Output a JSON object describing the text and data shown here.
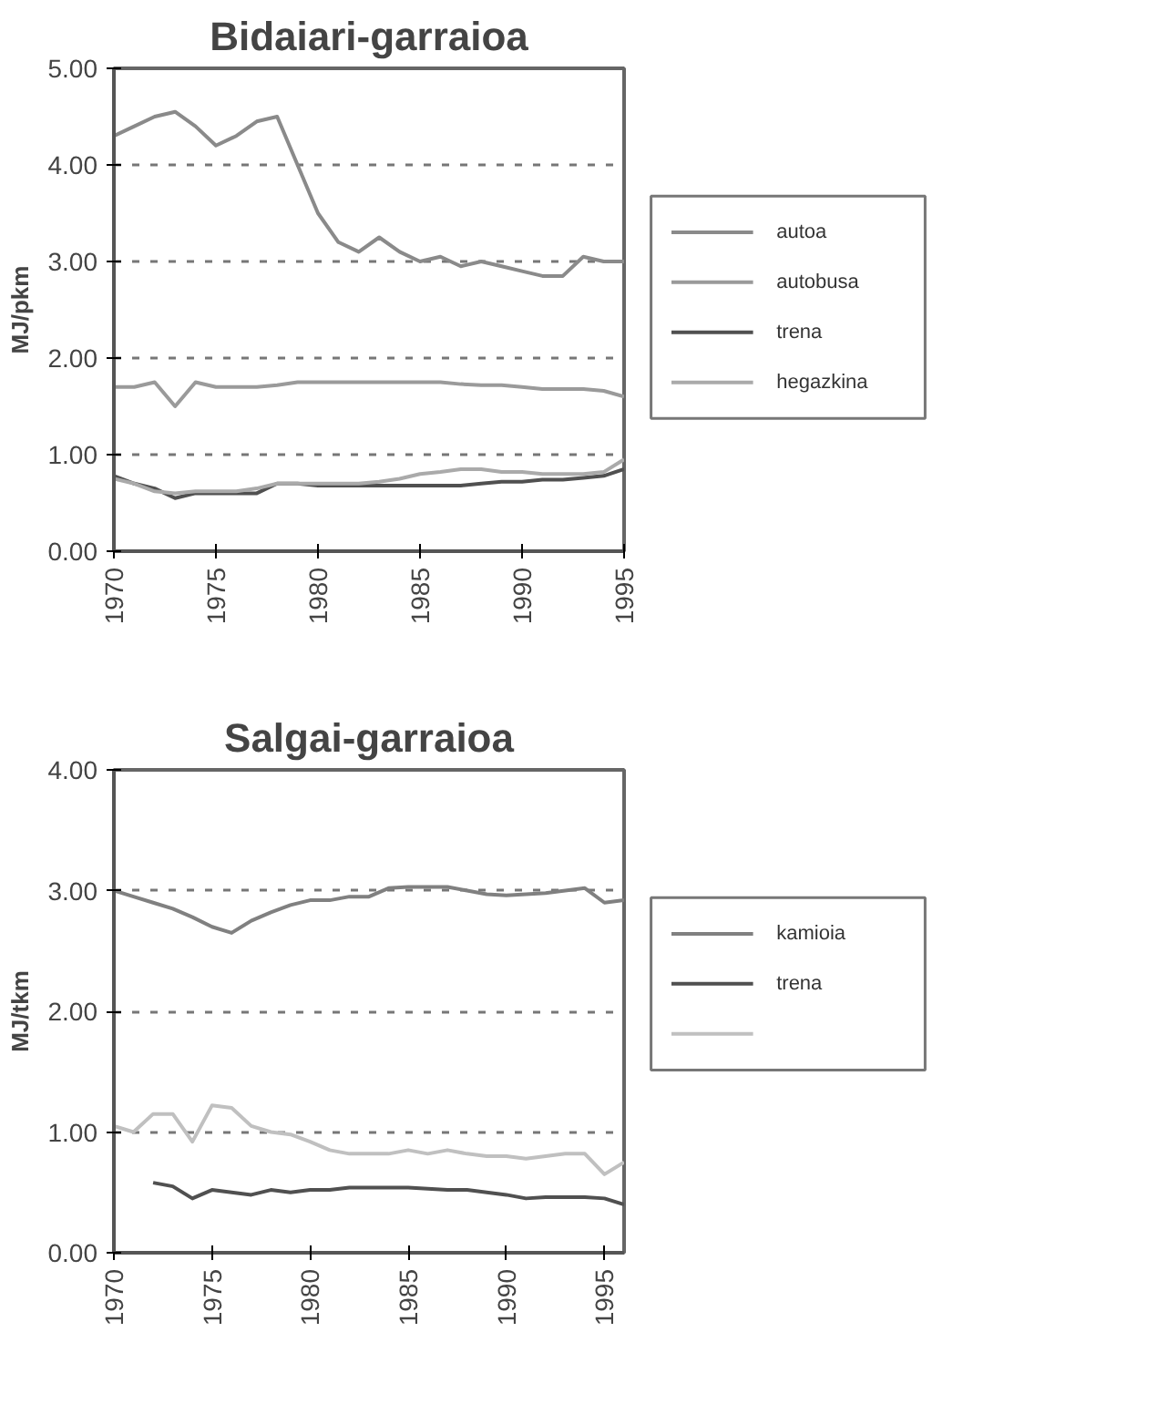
{
  "chart_data": [
    {
      "type": "line",
      "title": "Bidaiari-garraioa",
      "ylabel": "MJ/pkm",
      "x": [
        1970,
        1971,
        1972,
        1973,
        1974,
        1975,
        1976,
        1977,
        1978,
        1979,
        1980,
        1981,
        1982,
        1983,
        1984,
        1985,
        1986,
        1987,
        1988,
        1989,
        1990,
        1991,
        1992,
        1993,
        1994,
        1995
      ],
      "series": [
        {
          "name": "autoa",
          "color": "#8a8a8a",
          "values": [
            4.3,
            4.4,
            4.5,
            4.55,
            4.4,
            4.2,
            4.3,
            4.45,
            4.5,
            4.0,
            3.5,
            3.2,
            3.1,
            3.25,
            3.1,
            3.0,
            3.05,
            2.95,
            3.0,
            2.95,
            2.9,
            2.85,
            2.85,
            3.05,
            3.0,
            3.0
          ]
        },
        {
          "name": "autobusa",
          "color": "#9a9a9a",
          "values": [
            1.7,
            1.7,
            1.75,
            1.5,
            1.75,
            1.7,
            1.7,
            1.7,
            1.72,
            1.75,
            1.75,
            1.75,
            1.75,
            1.75,
            1.75,
            1.75,
            1.75,
            1.73,
            1.72,
            1.72,
            1.7,
            1.68,
            1.68,
            1.68,
            1.66,
            1.6
          ]
        },
        {
          "name": "trena",
          "color": "#505050",
          "values": [
            0.78,
            0.7,
            0.65,
            0.55,
            0.6,
            0.6,
            0.6,
            0.6,
            0.7,
            0.7,
            0.68,
            0.68,
            0.68,
            0.68,
            0.68,
            0.68,
            0.68,
            0.68,
            0.7,
            0.72,
            0.72,
            0.74,
            0.74,
            0.76,
            0.78,
            0.85
          ]
        },
        {
          "name": "hegazkina",
          "color": "#aaaaaa",
          "values": [
            0.75,
            0.7,
            0.62,
            0.6,
            0.62,
            0.62,
            0.62,
            0.65,
            0.7,
            0.7,
            0.7,
            0.7,
            0.7,
            0.72,
            0.75,
            0.8,
            0.82,
            0.85,
            0.85,
            0.82,
            0.82,
            0.8,
            0.8,
            0.8,
            0.82,
            0.95
          ]
        }
      ],
      "xlim": [
        1970,
        1995
      ],
      "xticks": [
        1970,
        1975,
        1980,
        1985,
        1990,
        1995
      ],
      "ylim": [
        0,
        5
      ],
      "yticks": [
        {
          "value": 0,
          "label": "0.00"
        },
        {
          "value": 1,
          "label": "1.00"
        },
        {
          "value": 2,
          "label": "2.00"
        },
        {
          "value": 3,
          "label": "3.00"
        },
        {
          "value": 4,
          "label": "4.00"
        },
        {
          "value": 5,
          "label": "5.00"
        }
      ],
      "grid": "y",
      "legend": "right",
      "line_style": "solid",
      "marker": "none"
    },
    {
      "type": "line",
      "title": "Salgai-garraioa",
      "ylabel": "MJ/tkm",
      "x": [
        1970,
        1971,
        1972,
        1973,
        1974,
        1975,
        1976,
        1977,
        1978,
        1979,
        1980,
        1981,
        1982,
        1983,
        1984,
        1985,
        1986,
        1987,
        1988,
        1989,
        1990,
        1991,
        1992,
        1993,
        1994,
        1995,
        1996
      ],
      "series": [
        {
          "name": "kamioia",
          "color": "#808080",
          "values": [
            3.0,
            2.95,
            2.9,
            2.85,
            2.78,
            2.7,
            2.65,
            2.75,
            2.82,
            2.88,
            2.92,
            2.92,
            2.95,
            2.95,
            3.02,
            3.03,
            3.03,
            3.03,
            3.0,
            2.97,
            2.96,
            2.97,
            2.98,
            3.0,
            3.02,
            2.9,
            2.92
          ]
        },
        {
          "name": "trena",
          "color": "#505050",
          "values": [
            null,
            null,
            0.58,
            0.55,
            0.45,
            0.52,
            0.5,
            0.48,
            0.52,
            0.5,
            0.52,
            0.52,
            0.54,
            0.54,
            0.54,
            0.54,
            0.53,
            0.52,
            0.52,
            0.5,
            0.48,
            0.45,
            0.46,
            0.46,
            0.46,
            0.45,
            0.4
          ]
        },
        {
          "color": "#c0c0c0",
          "values": [
            1.05,
            1.0,
            1.15,
            1.15,
            0.92,
            1.22,
            1.2,
            1.05,
            1.0,
            0.98,
            0.92,
            0.85,
            0.82,
            0.82,
            0.82,
            0.85,
            0.82,
            0.85,
            0.82,
            0.8,
            0.8,
            0.78,
            0.8,
            0.82,
            0.82,
            0.65,
            0.75
          ]
        }
      ],
      "xlim": [
        1970,
        1996
      ],
      "xticks": [
        1970,
        1975,
        1980,
        1985,
        1990,
        1995
      ],
      "ylim": [
        0,
        4
      ],
      "yticks": [
        {
          "value": 0,
          "label": "0.00"
        },
        {
          "value": 1,
          "label": "1.00"
        },
        {
          "value": 2,
          "label": "2.00"
        },
        {
          "value": 3,
          "label": "3.00"
        },
        {
          "value": 4,
          "label": "4.00"
        }
      ],
      "grid": "y",
      "legend": "right",
      "line_style": "solid",
      "marker": "none"
    }
  ]
}
